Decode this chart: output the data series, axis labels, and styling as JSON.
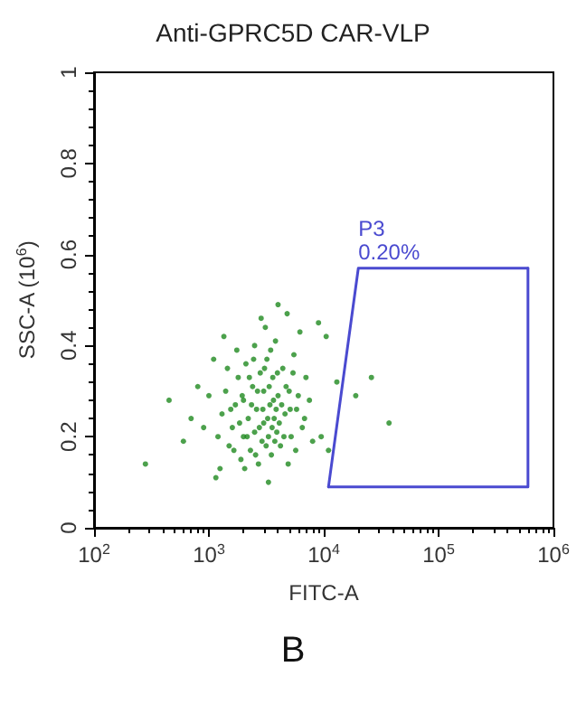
{
  "chart_data": {
    "type": "scatter",
    "title": "Anti-GPRC5D CAR-VLP",
    "xlabel": "FITC-A",
    "ylabel": "SSC-A (10$^{6}$)",
    "log": "x",
    "grid": false,
    "marker": "circle",
    "xlim": [
      100,
      1000000
    ],
    "xticks": [
      {
        "value": 100,
        "label": "10$^{2}$"
      },
      {
        "value": 1000,
        "label": "10$^{3}$"
      },
      {
        "value": 10000,
        "label": "10$^{4}$"
      },
      {
        "value": 100000,
        "label": "10$^{5}$"
      },
      {
        "value": 1000000,
        "label": "10$^{6}$"
      }
    ],
    "ylim": [
      0,
      1
    ],
    "yticks": [
      0,
      0.2,
      0.4,
      0.6,
      0.8,
      1
    ],
    "series": [
      {
        "color": "#1f8a1f",
        "x": [
          1200,
          1300,
          1400,
          1500,
          1600,
          1700,
          1800,
          1900,
          2000,
          2000,
          2100,
          2200,
          2300,
          2400,
          2500,
          2500,
          2600,
          2700,
          2800,
          2900,
          3000,
          3000,
          3100,
          3200,
          3300,
          3400,
          3500,
          3600,
          3700,
          3800,
          3900,
          4000,
          4200,
          4400,
          4600,
          4800,
          5000,
          5200,
          5500,
          5800,
          6200,
          6500,
          7000,
          7500,
          8000,
          9000,
          1000,
          1100,
          900,
          800,
          700,
          1250,
          1350,
          1450,
          1550,
          1650,
          1750,
          1850,
          1950,
          2050,
          2150,
          2250,
          2350,
          2450,
          2550,
          2650,
          2750,
          2850,
          2950,
          3050,
          3150,
          3250,
          3350,
          3450,
          3550,
          3650,
          3750,
          3850,
          3950,
          4100,
          4300,
          4500,
          4700,
          4900,
          5100,
          5400,
          5700,
          6000,
          6800,
          4000,
          600,
          450,
          280,
          11000,
          13000,
          19000,
          26000,
          37000,
          9500,
          10500,
          1150,
          3300
        ],
        "values": [
          0.2,
          0.25,
          0.3,
          0.18,
          0.22,
          0.27,
          0.33,
          0.15,
          0.2,
          0.28,
          0.36,
          0.24,
          0.17,
          0.31,
          0.21,
          0.4,
          0.26,
          0.14,
          0.34,
          0.19,
          0.23,
          0.3,
          0.44,
          0.37,
          0.2,
          0.27,
          0.16,
          0.33,
          0.24,
          0.41,
          0.21,
          0.29,
          0.18,
          0.35,
          0.25,
          0.47,
          0.3,
          0.2,
          0.38,
          0.26,
          0.43,
          0.22,
          0.33,
          0.28,
          0.19,
          0.45,
          0.29,
          0.37,
          0.22,
          0.31,
          0.24,
          0.13,
          0.42,
          0.35,
          0.26,
          0.17,
          0.39,
          0.23,
          0.29,
          0.13,
          0.2,
          0.33,
          0.27,
          0.37,
          0.16,
          0.3,
          0.22,
          0.46,
          0.26,
          0.35,
          0.18,
          0.24,
          0.31,
          0.39,
          0.22,
          0.28,
          0.19,
          0.26,
          0.34,
          0.23,
          0.27,
          0.2,
          0.31,
          0.14,
          0.26,
          0.34,
          0.17,
          0.29,
          0.24,
          0.49,
          0.19,
          0.28,
          0.14,
          0.17,
          0.32,
          0.29,
          0.33,
          0.23,
          0.2,
          0.42,
          0.11,
          0.1
        ]
      },
      {
        "type": "line",
        "color": "#4a4ad0",
        "marker": "none",
        "line_style": "solid",
        "x": [
          11000,
          20000,
          600000
        ],
        "values": [
          0.09,
          0.57,
          0.57
        ]
      },
      {
        "type": "line",
        "color": "#4a4ad0",
        "marker": "none",
        "line_style": "solid",
        "x": [
          11000,
          600000,
          600000
        ],
        "values": [
          0.09,
          0.09,
          0.57
        ]
      }
    ],
    "annotations": [
      "P3",
      "0.20%",
      "B"
    ]
  }
}
